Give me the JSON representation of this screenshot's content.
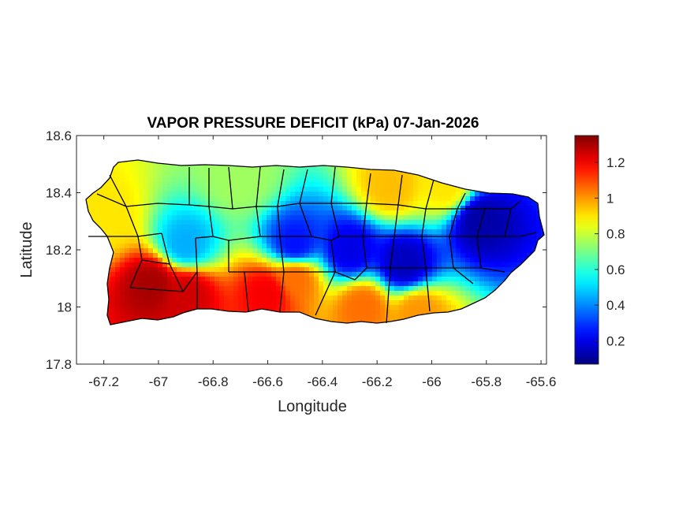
{
  "chart_data": {
    "type": "heatmap",
    "title": "VAPOR PRESSURE DEFICIT (kPa) 07-Jan-2026",
    "xlabel": "Longitude",
    "ylabel": "Latitude",
    "xlim": [
      -67.3,
      -65.58
    ],
    "ylim": [
      17.8,
      18.6
    ],
    "xticks": [
      -67.2,
      -67,
      -66.8,
      -66.6,
      -66.4,
      -66.2,
      -66,
      -65.8,
      -65.6
    ],
    "xtick_labels": [
      "-67.2",
      "-67",
      "-66.8",
      "-66.6",
      "-66.4",
      "-66.2",
      "-66",
      "-65.8",
      "-65.6"
    ],
    "yticks": [
      17.8,
      18,
      18.2,
      18.4,
      18.6
    ],
    "ytick_labels": [
      "17.8",
      "18",
      "18.2",
      "18.4",
      "18.6"
    ],
    "colorbar": {
      "colormap": "jet",
      "range": [
        0.07,
        1.35
      ],
      "ticks": [
        0.2,
        0.4,
        0.6,
        0.8,
        1,
        1.2
      ],
      "tick_labels": [
        "0.2",
        "0.4",
        "0.6",
        "0.8",
        "1",
        "1.2"
      ]
    },
    "grid": false,
    "region": "Puerto Rico with municipality boundaries",
    "features": [
      {
        "lon": -67.02,
        "lat": 18.08,
        "value": 1.3,
        "note": "southwest high VPD"
      },
      {
        "lon": -66.9,
        "lat": 18.05,
        "value": 1.25
      },
      {
        "lon": -66.6,
        "lat": 18.05,
        "value": 1.2
      },
      {
        "lon": -66.5,
        "lat": 18.1,
        "value": 1.05
      },
      {
        "lon": -66.25,
        "lat": 18.0,
        "value": 1.05
      },
      {
        "lon": -66.05,
        "lat": 17.98,
        "value": 1.0
      },
      {
        "lon": -66.5,
        "lat": 18.22,
        "value": 0.25,
        "note": "central low VPD band"
      },
      {
        "lon": -66.3,
        "lat": 18.2,
        "value": 0.2
      },
      {
        "lon": -66.1,
        "lat": 18.15,
        "value": 0.15
      },
      {
        "lon": -65.82,
        "lat": 18.3,
        "value": 0.12,
        "note": "El Yunque minimum"
      },
      {
        "lon": -66.9,
        "lat": 18.22,
        "value": 0.45
      },
      {
        "lon": -66.7,
        "lat": 18.45,
        "value": 0.75
      },
      {
        "lon": -66.15,
        "lat": 18.42,
        "value": 0.95
      },
      {
        "lon": -65.95,
        "lat": 18.42,
        "value": 0.9
      },
      {
        "lon": -67.2,
        "lat": 18.3,
        "value": 0.9
      }
    ]
  }
}
